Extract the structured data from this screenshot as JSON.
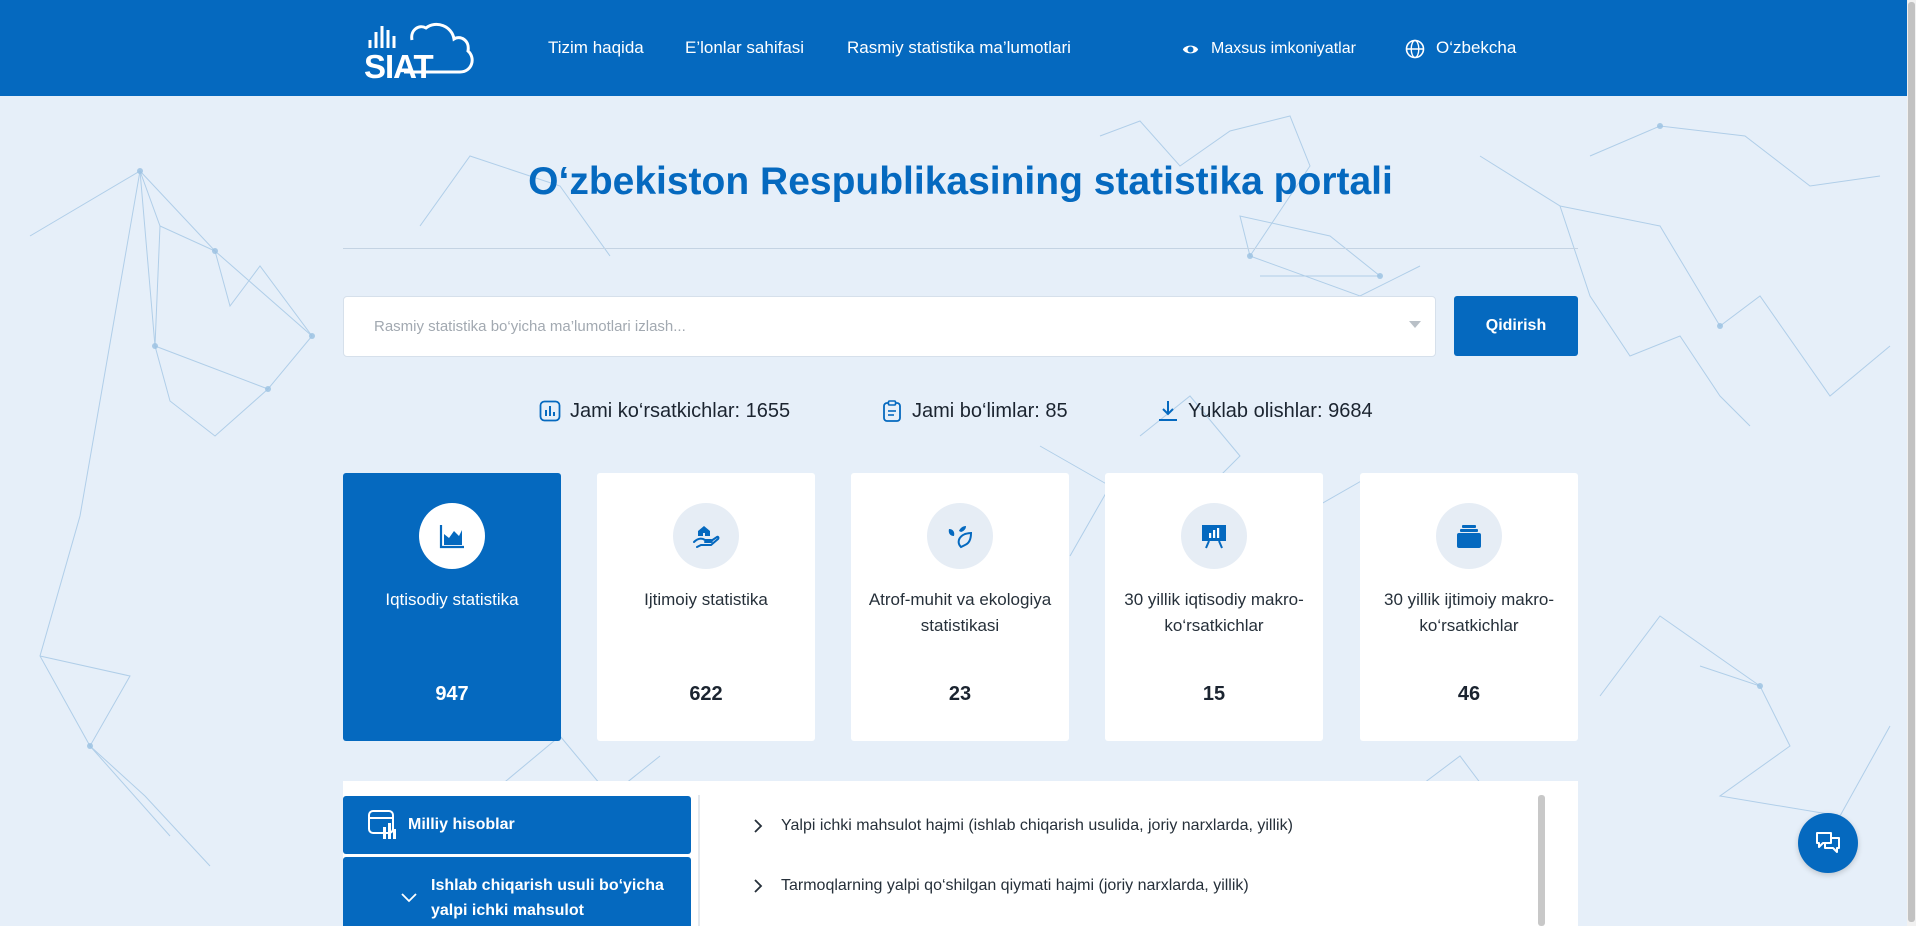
{
  "header": {
    "logo_text": "SIAT",
    "nav": [
      {
        "label": "Tizim haqida"
      },
      {
        "label": "E’lonlar sahifasi"
      },
      {
        "label": "Rasmiy statistika ma’lumotlari"
      }
    ],
    "accessibility_label": "Maxsus imkoniyatlar",
    "language_label": "O‘zbekcha"
  },
  "hero": {
    "title": "O‘zbekiston Respublikasining statistika portali"
  },
  "search": {
    "placeholder": "Rasmiy statistika bo‘yicha ma’lumotlari izlash...",
    "value": "",
    "button_label": "Qidirish"
  },
  "stats": [
    {
      "label": "Jami ko‘rsatkichlar: 1655",
      "icon": "bar-chart-icon"
    },
    {
      "label": "Jami bo‘limlar: 85",
      "icon": "clipboard-icon"
    },
    {
      "label": "Yuklab olishlar: 9684",
      "icon": "download-icon"
    }
  ],
  "categories": [
    {
      "label": "Iqtisodiy statistika",
      "count": "947",
      "icon": "area-chart-icon",
      "active": true
    },
    {
      "label": "Ijtimoiy statistika",
      "count": "622",
      "icon": "hand-house-icon",
      "active": false
    },
    {
      "label": "Atrof-muhit va ekologiya statistikasi",
      "count": "23",
      "icon": "leaf-icon",
      "active": false
    },
    {
      "label": "30 yillik iqtisodiy makro-ko‘rsatkichlar",
      "count": "15",
      "icon": "presentation-board-icon",
      "active": false
    },
    {
      "label": "30 yillik ijtimoiy makro-ko‘rsatkichlar",
      "count": "46",
      "icon": "folder-stack-icon",
      "active": false
    }
  ],
  "sections": {
    "sidebar": [
      {
        "label": "Milliy hisoblar",
        "icon": "report-chart-icon"
      },
      {
        "label": "Ishlab chiqarish usuli bo‘yicha yalpi ichki mahsulot",
        "icon": "chevron-down-icon"
      }
    ],
    "items": [
      {
        "label": "Yalpi ichki mahsulot hajmi (ishlab chiqarish usulida, joriy narxlarda, yillik)"
      },
      {
        "label": "Tarmoqlarning yalpi qo‘shilgan qiymati hajmi (joriy narxlarda, yillik)"
      }
    ]
  },
  "colors": {
    "brand": "#0569bf",
    "background": "#e6eff9",
    "card": "#ffffff"
  },
  "chat": {
    "icon": "chat-bubbles-icon"
  }
}
